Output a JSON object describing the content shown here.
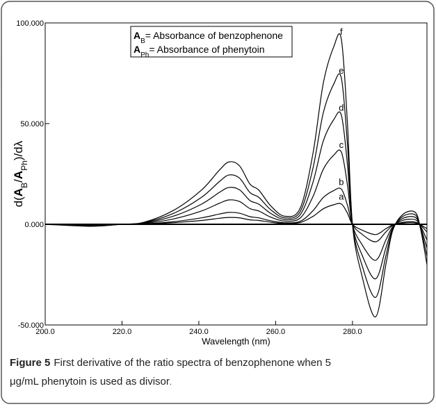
{
  "chart_data": {
    "type": "line",
    "xlabel": "Wavelength (nm)",
    "ylabel_parts": [
      {
        "text": "d(",
        "style": "normal"
      },
      {
        "text": "A",
        "style": "bold"
      },
      {
        "text": "B",
        "style": "sub"
      },
      {
        "text": "/",
        "style": "normal"
      },
      {
        "text": "A",
        "style": "bold"
      },
      {
        "text": "Ph",
        "style": "sub"
      },
      {
        "text": ")/dλ",
        "style": "normal"
      }
    ],
    "legend_lines": [
      {
        "symbol": "A",
        "sub": "B",
        "text": "= Absorbance of benzophenone"
      },
      {
        "symbol": "A",
        "sub": "Ph",
        "text": "= Absorbance of phenytoin"
      }
    ],
    "caption": {
      "label": "Figure 5",
      "text": "First derivative of the ratio spectra of benzophenone when 5 μg/mL phenytoin is used as divisor",
      "end": "."
    },
    "xlim": [
      200,
      299.4
    ],
    "ylim": [
      -50,
      100
    ],
    "xticks": [
      {
        "value": 200,
        "label": "200.0"
      },
      {
        "value": 220,
        "label": "220.0"
      },
      {
        "value": 240,
        "label": "240.0"
      },
      {
        "value": 260,
        "label": "260.0"
      },
      {
        "value": 280,
        "label": "280.0"
      }
    ],
    "yticks": [
      {
        "value": -50,
        "label": "-50.000"
      },
      {
        "value": 0,
        "label": "0.000"
      },
      {
        "value": 50,
        "label": "50.000"
      },
      {
        "value": 100,
        "label": "100.000"
      }
    ],
    "zero_line": true,
    "x": [
      200,
      211.8,
      219.9,
      225.7,
      233.5,
      240.7,
      245.4,
      247.9,
      250.6,
      253.3,
      255.6,
      258.8,
      262.4,
      266.4,
      269.7,
      272.4,
      275.1,
      277.1,
      278.7,
      280,
      282.4,
      286,
      288.7,
      290.5,
      293.2,
      296.3,
      297.7,
      299.4
    ],
    "series": [
      {
        "name": "a",
        "color": "#000000",
        "values": [
          0,
          -0.1,
          0,
          0.1,
          0.8,
          1.9,
          3,
          3.4,
          3.2,
          2.2,
          1.9,
          1,
          0.4,
          0.9,
          3.9,
          7.7,
          9.7,
          10.1,
          5.5,
          0,
          -2.8,
          -5.1,
          -2.2,
          -0.3,
          0.6,
          0.7,
          -0.2,
          -2.2
        ]
      },
      {
        "name": "b",
        "color": "#000000",
        "values": [
          0,
          -0.2,
          0,
          0.2,
          1.3,
          3.2,
          5.1,
          5.9,
          5.5,
          3.8,
          3.2,
          1.7,
          0.8,
          1.5,
          6.7,
          13.3,
          16.7,
          17.5,
          9.5,
          0,
          -4.8,
          -8.7,
          -3.8,
          -0.6,
          1,
          1.1,
          -0.4,
          -3.8
        ]
      },
      {
        "name": "c",
        "color": "#000000",
        "values": [
          0,
          -0.4,
          0,
          0.4,
          2.7,
          6.6,
          10.5,
          12.1,
          11.3,
          7.8,
          6.6,
          3.5,
          1.6,
          3.1,
          13.7,
          27.3,
          34.3,
          35.9,
          19.5,
          0,
          -9.8,
          -17.9,
          -7.8,
          -1.2,
          2,
          2.3,
          -0.8,
          -7.8
        ]
      },
      {
        "name": "d",
        "color": "#000000",
        "values": [
          0,
          -0.6,
          0,
          0.6,
          4.1,
          10,
          15.9,
          18.3,
          17.1,
          11.8,
          10,
          5.3,
          2.4,
          4.7,
          20.7,
          41.3,
          51.9,
          54.3,
          29.5,
          0,
          -14.8,
          -27.1,
          -11.8,
          -1.8,
          3,
          3.5,
          -1.2,
          -11.8
        ]
      },
      {
        "name": "e",
        "color": "#000000",
        "values": [
          0,
          -0.8,
          0,
          0.8,
          5.5,
          13.4,
          21.3,
          24.5,
          22.9,
          15.8,
          13.4,
          7.1,
          3.2,
          6.3,
          27.7,
          55.3,
          69.5,
          72.7,
          39.5,
          0,
          -19.8,
          -36.3,
          -15.8,
          -2.4,
          4,
          4.7,
          -1.6,
          -15.8
        ]
      },
      {
        "name": "f",
        "color": "#000000",
        "values": [
          0,
          -1,
          0,
          1,
          7,
          17,
          27,
          31,
          29,
          20,
          17,
          9,
          4,
          8,
          35,
          70,
          88,
          92,
          50,
          0,
          -25,
          -46,
          -20,
          -3,
          5,
          6,
          -2,
          -20
        ]
      }
    ]
  }
}
